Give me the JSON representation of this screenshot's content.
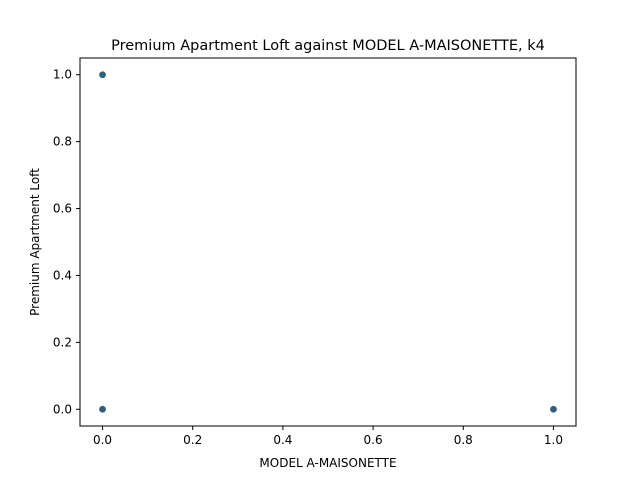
{
  "chart_data": {
    "type": "scatter",
    "title": "Premium Apartment Loft against MODEL A-MAISONETTE, k4",
    "xlabel": "MODEL A-MAISONETTE",
    "ylabel": "Premium Apartment Loft",
    "xlim": [
      -0.05,
      1.05
    ],
    "ylim": [
      -0.05,
      1.05
    ],
    "xticks": [
      "0.0",
      "0.2",
      "0.4",
      "0.6",
      "0.8",
      "1.0"
    ],
    "yticks": [
      "0.0",
      "0.2",
      "0.4",
      "0.6",
      "0.8",
      "1.0"
    ],
    "grid": false,
    "marker_color": "#2f5f80",
    "points": [
      {
        "x": 0.0,
        "y": 1.0
      },
      {
        "x": 0.0,
        "y": 0.0
      },
      {
        "x": 1.0,
        "y": 0.0
      }
    ]
  }
}
